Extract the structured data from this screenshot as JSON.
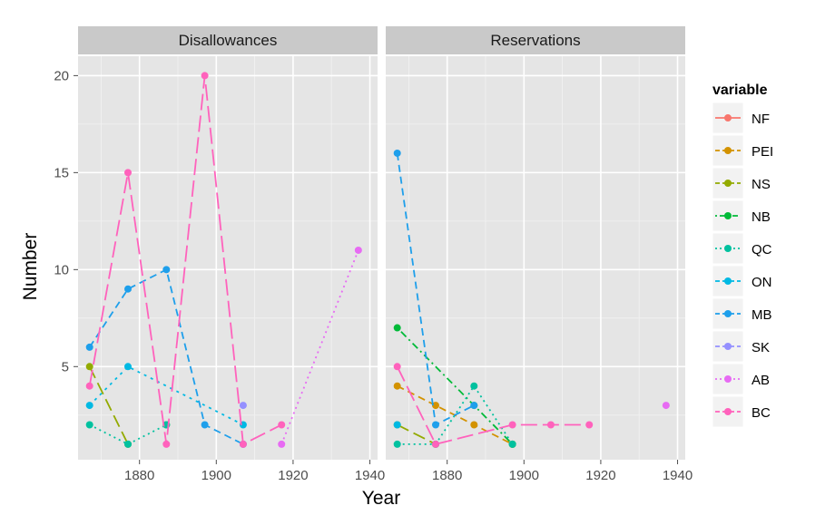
{
  "chart_data": {
    "type": "line",
    "xlabel": "Year",
    "ylabel": "Number",
    "xlim": [
      1864,
      1942
    ],
    "ylim": [
      0.2,
      21
    ],
    "x_ticks": [
      1880,
      1900,
      1920,
      1940
    ],
    "y_ticks": [
      5,
      10,
      15,
      20
    ],
    "x_tick_labels": [
      "1880",
      "1900",
      "1920",
      "1940"
    ],
    "y_tick_labels": [
      "5",
      "10",
      "15",
      "20"
    ],
    "grid": true,
    "legend": {
      "title": "variable",
      "placement": "right"
    },
    "panels": [
      {
        "title": "Disallowances",
        "series": [
          {
            "name": "NF",
            "color": "#F8766D",
            "dash": "solid",
            "x": [],
            "y": []
          },
          {
            "name": "PEI",
            "color": "#D39200",
            "dash": "dashed",
            "x": [],
            "y": []
          },
          {
            "name": "NS",
            "color": "#93AA00",
            "dash": "longdash",
            "x": [
              1867,
              1877
            ],
            "y": [
              5,
              1
            ]
          },
          {
            "name": "NB",
            "color": "#00BA38",
            "dash": "dotdash",
            "x": [
              1887
            ],
            "y": [
              2
            ]
          },
          {
            "name": "QC",
            "color": "#00C19F",
            "dash": "dotted",
            "x": [
              1867,
              1877,
              1887
            ],
            "y": [
              2,
              1,
              2
            ]
          },
          {
            "name": "ON",
            "color": "#00B9E3",
            "dash": "dotdash2",
            "x": [
              1867,
              1877,
              1907
            ],
            "y": [
              3,
              5,
              2
            ]
          },
          {
            "name": "MB",
            "color": "#1E9FEB",
            "dash": "dashed",
            "x": [
              1867,
              1877,
              1887,
              1897,
              1907
            ],
            "y": [
              6,
              9,
              10,
              2,
              1
            ]
          },
          {
            "name": "SK",
            "color": "#9590FF",
            "dash": "longdash",
            "x": [
              1907
            ],
            "y": [
              3
            ]
          },
          {
            "name": "AB",
            "color": "#E76BF3",
            "dash": "dotted",
            "x": [
              1917,
              1937
            ],
            "y": [
              1,
              11
            ]
          },
          {
            "name": "BC",
            "color": "#FF62BC",
            "dash": "longdash2",
            "x": [
              1867,
              1877,
              1887,
              1897,
              1907,
              1917
            ],
            "y": [
              4,
              15,
              1,
              20,
              1,
              2
            ]
          }
        ]
      },
      {
        "title": "Reservations",
        "series": [
          {
            "name": "NF",
            "color": "#F8766D",
            "dash": "solid",
            "x": [],
            "y": []
          },
          {
            "name": "PEI",
            "color": "#D39200",
            "dash": "dashed",
            "x": [
              1867,
              1877,
              1887,
              1897
            ],
            "y": [
              4,
              3,
              2,
              1
            ]
          },
          {
            "name": "NS",
            "color": "#93AA00",
            "dash": "longdash",
            "x": [
              1867,
              1877
            ],
            "y": [
              2,
              1
            ]
          },
          {
            "name": "NB",
            "color": "#00BA38",
            "dash": "dotdash",
            "x": [
              1867,
              1887,
              1897
            ],
            "y": [
              7,
              3,
              1
            ]
          },
          {
            "name": "QC",
            "color": "#00C19F",
            "dash": "dotted",
            "x": [
              1867,
              1877,
              1887,
              1897
            ],
            "y": [
              1,
              1,
              4,
              1
            ]
          },
          {
            "name": "ON",
            "color": "#00B9E3",
            "dash": "dotdash2",
            "x": [
              1867
            ],
            "y": [
              2
            ]
          },
          {
            "name": "MB",
            "color": "#1E9FEB",
            "dash": "dashed",
            "x": [
              1867,
              1877,
              1887
            ],
            "y": [
              16,
              2,
              3
            ]
          },
          {
            "name": "SK",
            "color": "#9590FF",
            "dash": "longdash",
            "x": [],
            "y": []
          },
          {
            "name": "AB",
            "color": "#E76BF3",
            "dash": "dotted",
            "x": [
              1937
            ],
            "y": [
              3
            ]
          },
          {
            "name": "BC",
            "color": "#FF62BC",
            "dash": "longdash2",
            "x": [
              1867,
              1877,
              1897,
              1907,
              1917
            ],
            "y": [
              5,
              1,
              2,
              2,
              2
            ]
          }
        ]
      }
    ],
    "legend_entries": [
      {
        "name": "NF",
        "color": "#F8766D",
        "dash": "solid"
      },
      {
        "name": "PEI",
        "color": "#D39200",
        "dash": "dashed"
      },
      {
        "name": "NS",
        "color": "#93AA00",
        "dash": "longdash"
      },
      {
        "name": "NB",
        "color": "#00BA38",
        "dash": "dotdash"
      },
      {
        "name": "QC",
        "color": "#00C19F",
        "dash": "dotted"
      },
      {
        "name": "ON",
        "color": "#00B9E3",
        "dash": "dotdash2"
      },
      {
        "name": "MB",
        "color": "#1E9FEB",
        "dash": "dashed"
      },
      {
        "name": "SK",
        "color": "#9590FF",
        "dash": "longdash"
      },
      {
        "name": "AB",
        "color": "#E76BF3",
        "dash": "dotted"
      },
      {
        "name": "BC",
        "color": "#FF62BC",
        "dash": "longdash2"
      }
    ]
  }
}
